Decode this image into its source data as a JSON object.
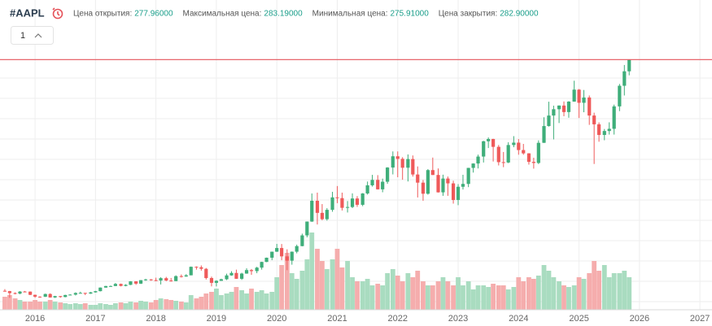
{
  "header": {
    "symbol": "#AAPL",
    "interval": "1",
    "fields": [
      {
        "label": "Цена открытия:",
        "value": "277.96000"
      },
      {
        "label": "Максимальная цена:",
        "value": "283.19000"
      },
      {
        "label": "Минимальная цена:",
        "value": "275.91000"
      },
      {
        "label": "Цена закрытия:",
        "value": "282.90000"
      }
    ]
  },
  "chart_data": {
    "type": "candlestick",
    "x": [
      2015.5,
      2015.58,
      2015.67,
      2015.75,
      2015.83,
      2015.92,
      2016.0,
      2016.08,
      2016.17,
      2016.25,
      2016.33,
      2016.42,
      2016.5,
      2016.58,
      2016.67,
      2016.75,
      2016.83,
      2016.92,
      2017.0,
      2017.08,
      2017.17,
      2017.25,
      2017.33,
      2017.42,
      2017.5,
      2017.58,
      2017.67,
      2017.75,
      2017.83,
      2017.92,
      2018.0,
      2018.08,
      2018.17,
      2018.25,
      2018.33,
      2018.42,
      2018.5,
      2018.58,
      2018.67,
      2018.75,
      2018.83,
      2018.92,
      2019.0,
      2019.08,
      2019.17,
      2019.25,
      2019.33,
      2019.42,
      2019.5,
      2019.58,
      2019.67,
      2019.75,
      2019.83,
      2019.92,
      2020.0,
      2020.08,
      2020.17,
      2020.25,
      2020.33,
      2020.42,
      2020.5,
      2020.58,
      2020.67,
      2020.75,
      2020.83,
      2020.92,
      2021.0,
      2021.08,
      2021.17,
      2021.25,
      2021.33,
      2021.42,
      2021.5,
      2021.58,
      2021.67,
      2021.75,
      2021.83,
      2021.92,
      2022.0,
      2022.08,
      2022.17,
      2022.25,
      2022.33,
      2022.42,
      2022.5,
      2022.58,
      2022.67,
      2022.75,
      2022.83,
      2022.92,
      2023.0,
      2023.08,
      2023.17,
      2023.25,
      2023.33,
      2023.42,
      2023.5,
      2023.58,
      2023.67,
      2023.75,
      2023.83,
      2023.92,
      2024.0,
      2024.08,
      2024.17,
      2024.25,
      2024.33,
      2024.42,
      2024.5,
      2024.58,
      2024.67,
      2024.75,
      2024.83,
      2024.92,
      2025.0,
      2025.08,
      2025.17,
      2025.25,
      2025.33,
      2025.42,
      2025.5,
      2025.58,
      2025.67,
      2025.75,
      2025.83
    ],
    "open": [
      30.7,
      30.3,
      28.2,
      27.6,
      29.9,
      29.8,
      26.3,
      24.3,
      24.2,
      27.2,
      23.4,
      24.9,
      23.9,
      26.1,
      26.5,
      28.3,
      28.4,
      27.6,
      29.0,
      30.3,
      34.2,
      35.9,
      35.9,
      38.2,
      36.0,
      37.2,
      41.0,
      38.5,
      42.3,
      43.1,
      42.3,
      41.9,
      44.5,
      41.9,
      41.3,
      46.7,
      46.3,
      47.6,
      56.9,
      56.4,
      54.7,
      44.6,
      39.4,
      41.6,
      43.3,
      47.5,
      50.2,
      43.8,
      49.5,
      53.3,
      52.2,
      56.0,
      62.2,
      66.8,
      73.4,
      77.4,
      68.3,
      63.6,
      73.4,
      79.5,
      91.2,
      106.3,
      129.0,
      115.8,
      108.9,
      119.1,
      132.7,
      131.9,
      121.3,
      122.2,
      131.5,
      124.6,
      137.0,
      145.9,
      151.8,
      141.5,
      149.8,
      165.3,
      177.6,
      174.8,
      165.1,
      174.6,
      157.7,
      148.8,
      136.7,
      162.5,
      157.2,
      138.2,
      153.3,
      148.0,
      129.9,
      144.3,
      147.4,
      164.9,
      169.7,
      177.3,
      194.0,
      196.5,
      187.9,
      171.2,
      170.8,
      189.9,
      192.5,
      184.4,
      180.8,
      171.5,
      170.3,
      192.3,
      210.6,
      222.1,
      229.0,
      233.0,
      225.9,
      237.3,
      250.4,
      236.0,
      241.8,
      222.1,
      212.5,
      200.9,
      205.2,
      207.6,
      232.1,
      254.6,
      270.4
    ],
    "high": [
      32.5,
      30.6,
      29.0,
      30.3,
      30.5,
      30.0,
      26.5,
      24.7,
      27.6,
      27.9,
      25.2,
      25.0,
      26.4,
      27.0,
      29.0,
      29.7,
      28.4,
      29.5,
      30.6,
      34.4,
      36.1,
      36.4,
      39.2,
      38.6,
      37.9,
      41.2,
      41.2,
      42.4,
      43.8,
      43.6,
      45.0,
      45.5,
      45.9,
      44.7,
      47.6,
      48.5,
      48.9,
      57.2,
      57.4,
      58.4,
      55.6,
      46.2,
      42.2,
      43.9,
      49.4,
      52.1,
      53.8,
      50.4,
      55.3,
      54.5,
      56.9,
      62.4,
      67.0,
      73.5,
      81.9,
      81.8,
      76.0,
      73.6,
      81.1,
      93.1,
      106.4,
      137.0,
      137.9,
      125.4,
      121.0,
      138.8,
      145.1,
      137.9,
      128.7,
      137.1,
      134.1,
      137.4,
      150.0,
      157.3,
      157.0,
      153.2,
      165.7,
      182.9,
      182.9,
      176.6,
      179.6,
      178.5,
      166.5,
      151.7,
      163.6,
      176.2,
      164.3,
      157.5,
      155.5,
      150.9,
      147.2,
      157.4,
      165.0,
      169.9,
      179.4,
      194.5,
      198.2,
      196.7,
      189.9,
      182.3,
      192.9,
      199.6,
      196.4,
      191.1,
      181.0,
      176.0,
      195.0,
      220.2,
      237.2,
      232.9,
      233.1,
      237.5,
      237.8,
      260.1,
      251.0,
      250.0,
      244.0,
      225.2,
      214.6,
      207.4,
      214.7,
      234.0,
      256.6,
      277.3,
      283.19
    ],
    "low": [
      29.8,
      23.0,
      26.8,
      27.0,
      29.0,
      26.0,
      23.1,
      23.1,
      23.9,
      23.2,
      22.9,
      23.1,
      23.6,
      26.0,
      25.6,
      28.1,
      26.0,
      27.3,
      28.7,
      30.0,
      34.1,
      35.0,
      35.8,
      35.5,
      35.6,
      36.9,
      37.2,
      38.1,
      41.6,
      41.6,
      41.2,
      37.6,
      41.2,
      40.7,
      41.3,
      45.2,
      46.0,
      47.6,
      53.8,
      52.7,
      43.0,
      35.5,
      35.5,
      41.5,
      42.4,
      47.1,
      43.7,
      42.6,
      49.3,
      48.1,
      49.9,
      53.8,
      62.0,
      64.1,
      73.2,
      64.1,
      53.2,
      59.2,
      71.6,
      79.3,
      89.1,
      106.0,
      103.1,
      107.7,
      107.3,
      117.0,
      126.4,
      118.4,
      116.2,
      121.0,
      122.3,
      123.1,
      135.8,
      144.5,
      141.3,
      138.3,
      147.5,
      157.8,
      154.7,
      152.0,
      150.1,
      155.4,
      132.6,
      129.0,
      135.7,
      157.1,
      138.0,
      134.4,
      134.4,
      125.9,
      124.2,
      141.3,
      143.9,
      159.8,
      164.3,
      170.8,
      186.6,
      171.9,
      167.6,
      165.7,
      170.1,
      187.5,
      179.3,
      179.3,
      168.5,
      164.1,
      169.1,
      192.2,
      210.0,
      196.0,
      213.9,
      221.3,
      219.7,
      237.2,
      219.4,
      225.7,
      211.9,
      169.2,
      193.5,
      195.1,
      201.3,
      201.3,
      226.9,
      244.0,
      266.0
    ],
    "close": [
      30.3,
      28.2,
      27.6,
      29.9,
      29.8,
      26.3,
      24.3,
      24.2,
      27.2,
      23.4,
      24.9,
      23.9,
      26.1,
      26.5,
      28.3,
      28.4,
      27.6,
      29.0,
      30.3,
      34.2,
      35.9,
      35.9,
      38.2,
      36.0,
      37.2,
      41.0,
      38.5,
      42.3,
      43.1,
      42.3,
      41.9,
      44.5,
      41.9,
      41.3,
      46.7,
      46.3,
      47.6,
      56.9,
      56.4,
      54.7,
      44.6,
      39.4,
      41.6,
      43.3,
      47.5,
      50.2,
      43.8,
      49.5,
      53.3,
      52.2,
      56.0,
      62.2,
      66.8,
      73.4,
      77.4,
      68.3,
      63.6,
      73.4,
      79.5,
      91.2,
      106.3,
      129.0,
      115.8,
      108.9,
      119.1,
      132.7,
      131.9,
      121.3,
      122.2,
      131.5,
      124.6,
      137.0,
      145.9,
      151.8,
      141.5,
      149.8,
      165.3,
      177.6,
      174.8,
      165.1,
      174.6,
      157.7,
      148.8,
      136.7,
      162.5,
      157.2,
      138.2,
      153.3,
      148.0,
      129.9,
      144.3,
      147.4,
      164.9,
      169.7,
      177.3,
      194.0,
      196.5,
      187.9,
      171.2,
      170.8,
      189.9,
      192.5,
      184.4,
      180.8,
      171.5,
      170.3,
      192.3,
      210.6,
      222.1,
      229.0,
      233.0,
      225.9,
      237.3,
      250.4,
      236.0,
      241.8,
      222.1,
      212.5,
      200.9,
      205.2,
      207.6,
      232.1,
      254.6,
      270.4,
      282.9
    ],
    "volume": [
      16,
      18,
      14,
      12,
      10,
      10,
      12,
      10,
      10,
      12,
      10,
      9,
      8,
      7,
      8,
      7,
      8,
      6,
      6,
      8,
      7,
      6,
      8,
      9,
      8,
      10,
      9,
      11,
      10,
      9,
      12,
      14,
      13,
      12,
      11,
      10,
      9,
      18,
      14,
      16,
      20,
      22,
      26,
      18,
      20,
      22,
      28,
      24,
      20,
      26,
      22,
      24,
      20,
      22,
      40,
      55,
      70,
      45,
      38,
      48,
      62,
      95,
      75,
      60,
      50,
      62,
      75,
      52,
      60,
      40,
      35,
      35,
      38,
      30,
      32,
      30,
      45,
      50,
      42,
      35,
      45,
      40,
      48,
      35,
      30,
      30,
      35,
      40,
      35,
      30,
      40,
      30,
      35,
      25,
      30,
      30,
      28,
      32,
      30,
      30,
      25,
      28,
      40,
      35,
      40,
      38,
      42,
      55,
      48,
      40,
      35,
      30,
      28,
      30,
      40,
      38,
      45,
      60,
      48,
      55,
      40,
      45,
      45,
      48,
      40
    ],
    "xlim": [
      2015.42,
      2027.2
    ],
    "xticks": [
      2016,
      2017,
      2018,
      2019,
      2020,
      2021,
      2022,
      2023,
      2024,
      2025,
      2026,
      2027
    ],
    "ylim": [
      10,
      295
    ],
    "volume_lim": [
      0,
      100
    ],
    "price_line": 283.19,
    "price_line_color": "#e5535a",
    "up_color": "#3fae7a",
    "down_color": "#ef5a5a",
    "volume_up_color": "#a9dcc0",
    "volume_down_color": "#f5adad",
    "grid": true
  }
}
